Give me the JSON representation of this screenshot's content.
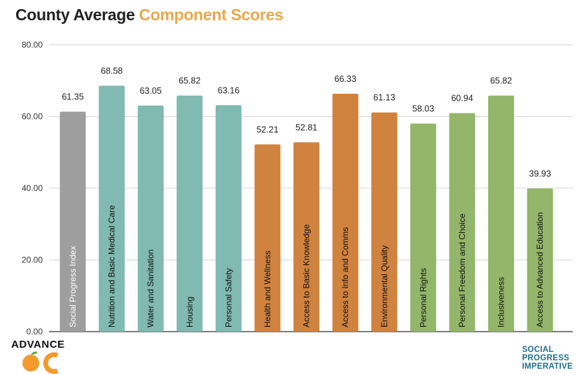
{
  "title": {
    "part1": "County Average",
    "part2": "Component Scores",
    "part2_color": "#e8a94a"
  },
  "logos": {
    "left_word": "ADVANCE",
    "right_lines": [
      "SOCIAL",
      "PROGRESS",
      "IMPERATIVE"
    ],
    "right_color": "#1f6e8c"
  },
  "chart_data": {
    "type": "bar",
    "title": "County Average Component Scores",
    "ylim": [
      0,
      80
    ],
    "yticks": [
      "0.00",
      "20.00",
      "40.00",
      "60.00",
      "80.00"
    ],
    "ytick_values": [
      0,
      20,
      40,
      60,
      80
    ],
    "grid": true,
    "bars": [
      {
        "label": "Social Progress Index",
        "value": 61.35,
        "value_label": "61.35",
        "color": "#9e9e9e"
      },
      {
        "label": "Nutrition and Basic Medical Care",
        "value": 68.58,
        "value_label": "68.58",
        "color": "#80bab1"
      },
      {
        "label": "Water and Sanitation",
        "value": 63.05,
        "value_label": "63.05",
        "color": "#80bab1"
      },
      {
        "label": "Housing",
        "value": 65.82,
        "value_label": "65.82",
        "color": "#80bab1"
      },
      {
        "label": "Personal Safety",
        "value": 63.16,
        "value_label": "63.16",
        "color": "#80bab1"
      },
      {
        "label": "Health and Wellness",
        "value": 52.21,
        "value_label": "52.21",
        "color": "#d0823f"
      },
      {
        "label": "Access to Basic Knowledge",
        "value": 52.81,
        "value_label": "52.81",
        "color": "#d0823f"
      },
      {
        "label": "Access to Info and Comms",
        "value": 66.33,
        "value_label": "66.33",
        "color": "#d0823f"
      },
      {
        "label": "Environmental Quality",
        "value": 61.13,
        "value_label": "61.13",
        "color": "#d0823f"
      },
      {
        "label": "Personal Rights",
        "value": 58.03,
        "value_label": "58.03",
        "color": "#93b66a"
      },
      {
        "label": "Personal Freedom and Choice",
        "value": 60.94,
        "value_label": "60.94",
        "color": "#93b66a"
      },
      {
        "label": "Inclusiveness",
        "value": 65.82,
        "value_label": "65.82",
        "color": "#93b66a"
      },
      {
        "label": "Access to Advanced Education",
        "value": 39.93,
        "value_label": "39.93",
        "color": "#93b66a"
      }
    ]
  }
}
